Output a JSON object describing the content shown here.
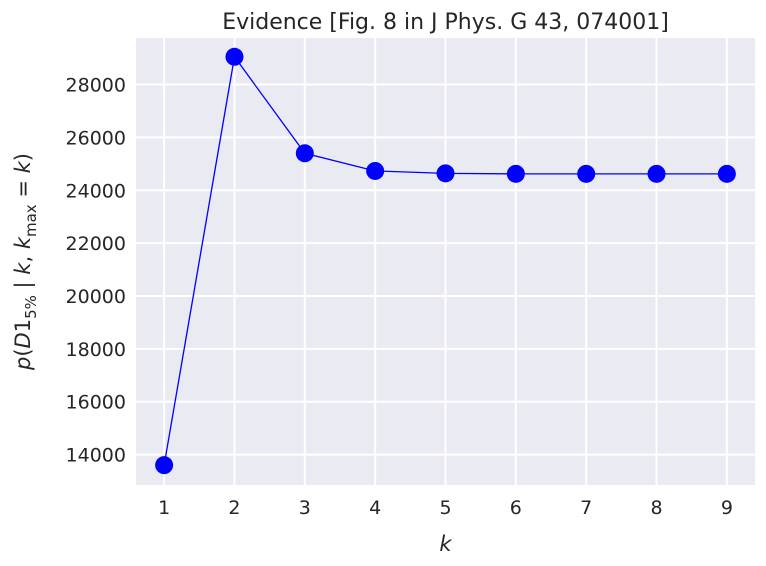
{
  "chart_data": {
    "type": "line",
    "title": "Evidence [Fig. 8 in J Phys. G 43, 074001]",
    "xlabel": "k",
    "ylabel": {
      "p": "p",
      "open": "(",
      "D": "D",
      "one": "1",
      "sub_pct": "5%",
      "bar": " | ",
      "k1": "k",
      "comma": ", ",
      "k2": "k",
      "sub_max": "max",
      "eq": " = ",
      "k3": "k",
      "close": ")"
    },
    "x": [
      1,
      2,
      3,
      4,
      5,
      6,
      7,
      8,
      9
    ],
    "series": [
      {
        "values": [
          13600,
          29050,
          25400,
          24730,
          24640,
          24620,
          24620,
          24620,
          24620
        ]
      }
    ],
    "xticks": [
      1,
      2,
      3,
      4,
      5,
      6,
      7,
      8,
      9
    ],
    "yticks": [
      14000,
      16000,
      18000,
      20000,
      22000,
      24000,
      26000,
      28000
    ],
    "xlim": [
      0.6,
      9.4
    ],
    "ylim": [
      12850,
      29760
    ],
    "grid": true,
    "colors": {
      "plot_background": "#eaeaf2",
      "grid": "#ffffff",
      "series": "#0000ff",
      "text": "#262626"
    }
  }
}
